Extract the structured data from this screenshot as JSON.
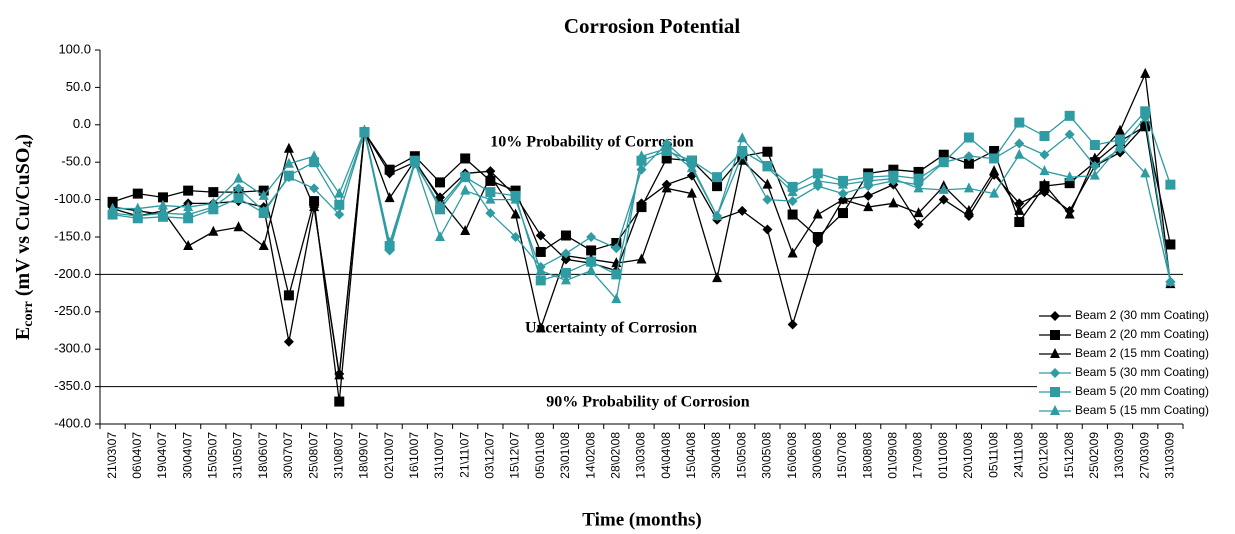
{
  "chart_data": {
    "type": "line",
    "title": "Corrosion Potential",
    "x_label": "Time (months)",
    "y_label": {
      "main": "E",
      "sub": "corr",
      "rest": " (mV vs Cu/CuSO",
      "sub2": "4",
      "end": ")"
    },
    "categories": [
      "21\\03\\07",
      "06\\04\\07",
      "19\\04\\07",
      "30\\04\\07",
      "15\\05\\07",
      "31\\05\\07",
      "18\\06\\07",
      "30\\07\\07",
      "25\\08\\07",
      "31\\08\\07",
      "18\\09\\07",
      "02\\10\\07",
      "16\\10\\07",
      "31\\10\\07",
      "21\\11\\07",
      "03\\12\\07",
      "15\\12\\07",
      "05\\01\\08",
      "23\\01\\08",
      "14\\02\\08",
      "28\\02\\08",
      "13\\03\\08",
      "04\\04\\08",
      "15\\04\\08",
      "30\\04\\08",
      "15\\05\\08",
      "30\\05\\08",
      "16\\06\\08",
      "30\\06\\08",
      "15\\07\\08",
      "18\\08\\08",
      "01\\09\\08",
      "17\\09\\08",
      "01\\10\\08",
      "20\\10\\08",
      "05\\11\\08",
      "24\\11\\08",
      "02\\12\\08",
      "15\\12\\08",
      "25\\02\\09",
      "13\\03\\09",
      "27\\03\\09",
      "31\\03\\09"
    ],
    "series": [
      {
        "name": "Beam 2 (30 mm Coating)",
        "color": "#000000",
        "marker": "diamond",
        "values": [
          -110,
          -115,
          -120,
          -105,
          -105,
          -102,
          -110,
          -290,
          -110,
          -333,
          -10,
          -65,
          -50,
          -97,
          -65,
          -62,
          -95,
          -148,
          -180,
          -185,
          -195,
          -105,
          -80,
          -68,
          -127,
          -115,
          -140,
          -267,
          -157,
          -100,
          -95,
          -80,
          -133,
          -100,
          -122,
          -67,
          -105,
          -90,
          -115,
          -55,
          -37,
          0,
          -210
        ]
      },
      {
        "name": "Beam 2 (20 mm Coating)",
        "color": "#000000",
        "marker": "square",
        "values": [
          -103,
          -92,
          -97,
          -88,
          -90,
          -90,
          -88,
          -228,
          -102,
          -370,
          -10,
          -60,
          -42,
          -77,
          -45,
          -75,
          -88,
          -170,
          -148,
          -168,
          -158,
          -110,
          -45,
          -48,
          -82,
          -42,
          -36,
          -120,
          -150,
          -118,
          -65,
          -60,
          -63,
          -40,
          -52,
          -35,
          -130,
          -82,
          -78,
          -50,
          -22,
          -2,
          -160
        ]
      },
      {
        "name": "Beam 2 (15 mm Coating)",
        "color": "#000000",
        "marker": "triangle",
        "values": [
          -112,
          -122,
          -115,
          -162,
          -143,
          -137,
          -162,
          -32,
          -110,
          -335,
          -8,
          -98,
          -48,
          -100,
          -142,
          -68,
          -120,
          -272,
          -175,
          -180,
          -185,
          -180,
          -85,
          -92,
          -205,
          -48,
          -80,
          -172,
          -120,
          -100,
          -110,
          -105,
          -118,
          -82,
          -115,
          -62,
          -115,
          -80,
          -120,
          -45,
          -8,
          68,
          -213
        ]
      },
      {
        "name": "Beam 5 (30 mm Coating)",
        "color": "#2e9ca2",
        "marker": "diamond",
        "values": [
          -118,
          -122,
          -118,
          -120,
          -110,
          -85,
          -115,
          -70,
          -85,
          -120,
          -10,
          -168,
          -52,
          -108,
          -68,
          -118,
          -150,
          -190,
          -172,
          -150,
          -165,
          -60,
          -25,
          -55,
          -122,
          -40,
          -100,
          -102,
          -82,
          -92,
          -82,
          -75,
          -80,
          -50,
          -42,
          -45,
          -25,
          -40,
          -13,
          -55,
          -32,
          10,
          -210
        ]
      },
      {
        "name": "Beam 5 (20 mm Coating)",
        "color": "#2e9ca2",
        "marker": "square",
        "values": [
          -120,
          -125,
          -123,
          -125,
          -113,
          -98,
          -118,
          -68,
          -50,
          -107,
          -10,
          -162,
          -48,
          -113,
          -70,
          -90,
          -95,
          -208,
          -198,
          -183,
          -200,
          -48,
          -35,
          -48,
          -70,
          -35,
          -55,
          -83,
          -65,
          -75,
          -70,
          -68,
          -72,
          -50,
          -17,
          -45,
          3,
          -15,
          12,
          -27,
          -20,
          18,
          -80
        ]
      },
      {
        "name": "Beam 5 (15 mm Coating)",
        "color": "#2e9ca2",
        "marker": "triangle",
        "values": [
          -112,
          -112,
          -108,
          -110,
          -105,
          -72,
          -95,
          -52,
          -42,
          -92,
          -8,
          -158,
          -50,
          -150,
          -88,
          -100,
          -100,
          -195,
          -208,
          -195,
          -233,
          -42,
          -32,
          -58,
          -122,
          -18,
          -57,
          -90,
          -75,
          -80,
          -75,
          -72,
          -85,
          -87,
          -85,
          -92,
          -40,
          -62,
          -70,
          -68,
          -28,
          -65,
          -210
        ]
      }
    ],
    "ylim": [
      -400,
      100
    ],
    "yticks": [
      {
        "value": -400,
        "label": "-400.0"
      },
      {
        "value": -350,
        "label": "-350.0"
      },
      {
        "value": -300,
        "label": "-300.0"
      },
      {
        "value": -250,
        "label": "-250.0"
      },
      {
        "value": -200,
        "label": "-200.0"
      },
      {
        "value": -150,
        "label": "-150.0"
      },
      {
        "value": -100,
        "label": "-100.0"
      },
      {
        "value": -50,
        "label": "-50.0"
      },
      {
        "value": 0,
        "label": "0.0"
      },
      {
        "value": 50,
        "label": "50.0"
      },
      {
        "value": 100,
        "label": "100.0"
      }
    ],
    "reference_lines": [
      -200,
      -350
    ],
    "annotations": [
      "10% Probability of Corrosion",
      "Uncertainty of Corrosion",
      "90% Probability of Corrosion"
    ],
    "legend": "lower right"
  }
}
